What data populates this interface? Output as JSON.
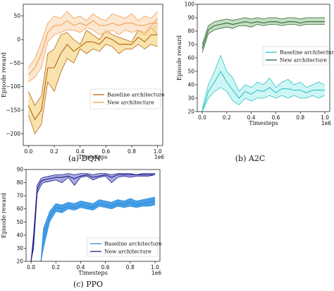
{
  "chart_data": [
    {
      "type": "line",
      "caption": "(a)  DQN",
      "xlabel": "Timesteps",
      "ylabel": "Episode reward",
      "x_multiplier": "1e6",
      "xlim": [
        -0.04,
        1.04
      ],
      "ylim": [
        -225,
        75
      ],
      "xticks": [
        0.0,
        0.2,
        0.4,
        0.6,
        0.8,
        1.0
      ],
      "xtick_labels": [
        "0.0",
        "0.2",
        "0.4",
        "0.6",
        "0.8",
        "1.0"
      ],
      "yticks": [
        -200,
        -150,
        -100,
        -50,
        0,
        50
      ],
      "ytick_labels": [
        "−200",
        "−150",
        "−100",
        "−50",
        "0",
        "50"
      ],
      "legend_position": "lower-right",
      "x": [
        0.0,
        0.05,
        0.1,
        0.15,
        0.2,
        0.25,
        0.3,
        0.35,
        0.4,
        0.45,
        0.5,
        0.55,
        0.6,
        0.65,
        0.7,
        0.75,
        0.8,
        0.85,
        0.9,
        0.95,
        1.0
      ],
      "series": [
        {
          "name": "Baseline architecture",
          "color": "#b8650a",
          "fill": "#f3d07a",
          "upper": [
            -110,
            -140,
            -120,
            -30,
            -20,
            10,
            15,
            0,
            -10,
            20,
            10,
            0,
            20,
            10,
            5,
            0,
            -5,
            20,
            15,
            30,
            45
          ],
          "lower": [
            -160,
            -200,
            -180,
            -90,
            -110,
            -70,
            -40,
            -50,
            -20,
            -30,
            -20,
            -25,
            -10,
            -15,
            -30,
            -20,
            -20,
            -10,
            -20,
            -10,
            -15
          ],
          "mean": [
            -140,
            -170,
            -150,
            -60,
            -60,
            -30,
            -10,
            -25,
            -15,
            -5,
            -5,
            -10,
            5,
            0,
            -10,
            -10,
            -10,
            5,
            -5,
            10,
            10
          ]
        },
        {
          "name": "New architecture",
          "color": "#f0a050",
          "fill": "#fad7b0",
          "upper": [
            -60,
            -40,
            -5,
            35,
            50,
            45,
            60,
            45,
            50,
            40,
            55,
            45,
            40,
            55,
            50,
            45,
            55,
            40,
            50,
            45,
            60
          ],
          "lower": [
            -90,
            -80,
            -60,
            -5,
            10,
            15,
            20,
            20,
            15,
            25,
            20,
            10,
            15,
            20,
            10,
            20,
            15,
            20,
            10,
            25,
            10
          ],
          "mean": [
            -75,
            -60,
            -30,
            15,
            30,
            30,
            40,
            30,
            35,
            30,
            40,
            30,
            30,
            35,
            30,
            35,
            35,
            30,
            30,
            35,
            35
          ]
        }
      ]
    },
    {
      "type": "line",
      "caption": "(b)  A2C",
      "xlabel": "Timesteps",
      "ylabel": "Episode reward",
      "x_multiplier": "1e6",
      "xlim": [
        -0.04,
        1.04
      ],
      "ylim": [
        20,
        100
      ],
      "xticks": [
        0.0,
        0.2,
        0.4,
        0.6,
        0.8,
        1.0
      ],
      "xtick_labels": [
        "0.0",
        "0.2",
        "0.4",
        "0.6",
        "0.8",
        "1.0"
      ],
      "yticks": [
        20,
        30,
        40,
        50,
        60,
        70,
        80,
        90,
        100
      ],
      "ytick_labels": [
        "20",
        "30",
        "40",
        "50",
        "60",
        "70",
        "80",
        "90",
        "100"
      ],
      "legend_position": "center-right",
      "x": [
        0.0,
        0.05,
        0.1,
        0.15,
        0.2,
        0.25,
        0.3,
        0.35,
        0.4,
        0.45,
        0.5,
        0.55,
        0.6,
        0.65,
        0.7,
        0.75,
        0.8,
        0.85,
        0.9,
        0.95,
        1.0
      ],
      "series": [
        {
          "name": "Baseline architecture",
          "color": "#2ec4c4",
          "fill": "#aef0ee",
          "upper": [
            22,
            40,
            50,
            62,
            50,
            45,
            35,
            40,
            38,
            42,
            40,
            45,
            38,
            42,
            44,
            40,
            42,
            38,
            40,
            42,
            40
          ],
          "lower": [
            20,
            30,
            35,
            38,
            35,
            28,
            25,
            30,
            28,
            30,
            30,
            32,
            30,
            32,
            30,
            32,
            30,
            30,
            32,
            30,
            32
          ],
          "mean": [
            20,
            35,
            42,
            50,
            42,
            36,
            30,
            35,
            33,
            36,
            35,
            38,
            34,
            37,
            37,
            36,
            36,
            34,
            36,
            36,
            36
          ]
        },
        {
          "name": "New architecture",
          "color": "#2d6a2d",
          "fill": "#9bc49b",
          "upper": [
            70,
            84,
            87,
            88,
            89,
            88,
            89,
            90,
            89,
            90,
            89,
            90,
            90,
            89,
            90,
            90,
            89,
            90,
            90,
            90,
            90
          ],
          "lower": [
            64,
            78,
            81,
            82,
            83,
            82,
            84,
            84,
            83,
            85,
            84,
            85,
            85,
            84,
            85,
            85,
            84,
            85,
            85,
            85,
            85
          ],
          "mean": [
            67,
            81,
            84,
            85,
            86,
            85,
            86,
            87,
            86,
            87,
            86,
            87,
            87,
            86,
            87,
            87,
            86,
            87,
            87,
            87,
            87
          ]
        }
      ]
    },
    {
      "type": "line",
      "caption": "(c)  PPO",
      "xlabel": "Timesteps",
      "ylabel": "Episode reward",
      "x_multiplier": "1e6",
      "xlim": [
        -0.04,
        1.04
      ],
      "ylim": [
        20,
        90
      ],
      "xticks": [
        0.0,
        0.2,
        0.4,
        0.6,
        0.8,
        1.0
      ],
      "xtick_labels": [
        "0.0",
        "0.2",
        "0.4",
        "0.6",
        "0.8",
        "1.0"
      ],
      "yticks": [
        20,
        30,
        40,
        50,
        60,
        70,
        80,
        90
      ],
      "ytick_labels": [
        "20",
        "30",
        "40",
        "50",
        "60",
        "70",
        "80",
        "90"
      ],
      "legend_position": "lower-right",
      "x": [
        0.0,
        0.02,
        0.05,
        0.08,
        0.1,
        0.15,
        0.2,
        0.25,
        0.3,
        0.35,
        0.4,
        0.45,
        0.5,
        0.55,
        0.6,
        0.65,
        0.7,
        0.75,
        0.8,
        0.85,
        0.9,
        0.95,
        1.0
      ],
      "series": [
        {
          "name": "Baseline architecture",
          "color": "#2a8ee0",
          "fill": "#2a8ee0",
          "upper": [
            20,
            20,
            20,
            20,
            45,
            58,
            64,
            63,
            65,
            64,
            66,
            65,
            64,
            67,
            66,
            65,
            67,
            66,
            68,
            66,
            67,
            68,
            69
          ],
          "lower": [
            20,
            20,
            20,
            20,
            30,
            50,
            58,
            57,
            60,
            59,
            61,
            60,
            59,
            62,
            61,
            60,
            62,
            61,
            62,
            61,
            62,
            62,
            63
          ],
          "mean": [
            20,
            20,
            20,
            20,
            38,
            54,
            61,
            60,
            62,
            61,
            63,
            62,
            61,
            64,
            63,
            62,
            64,
            63,
            65,
            63,
            64,
            65,
            66
          ]
        },
        {
          "name": "New architecture",
          "color": "#1c1f8a",
          "fill": "#6f72c8",
          "upper": [
            20,
            40,
            78,
            83,
            84,
            85,
            86,
            86,
            87,
            86,
            87,
            87,
            86,
            87,
            87,
            86,
            87,
            87,
            87,
            86,
            87,
            87,
            87
          ],
          "lower": [
            20,
            30,
            72,
            78,
            80,
            81,
            82,
            80,
            84,
            78,
            84,
            85,
            82,
            84,
            85,
            80,
            84,
            85,
            84,
            85,
            85,
            85,
            86
          ],
          "mean": [
            20,
            35,
            75,
            81,
            82,
            83,
            84,
            84,
            85,
            83,
            85,
            86,
            84,
            85,
            86,
            84,
            86,
            86,
            86,
            86,
            86,
            86,
            86
          ]
        }
      ]
    }
  ]
}
